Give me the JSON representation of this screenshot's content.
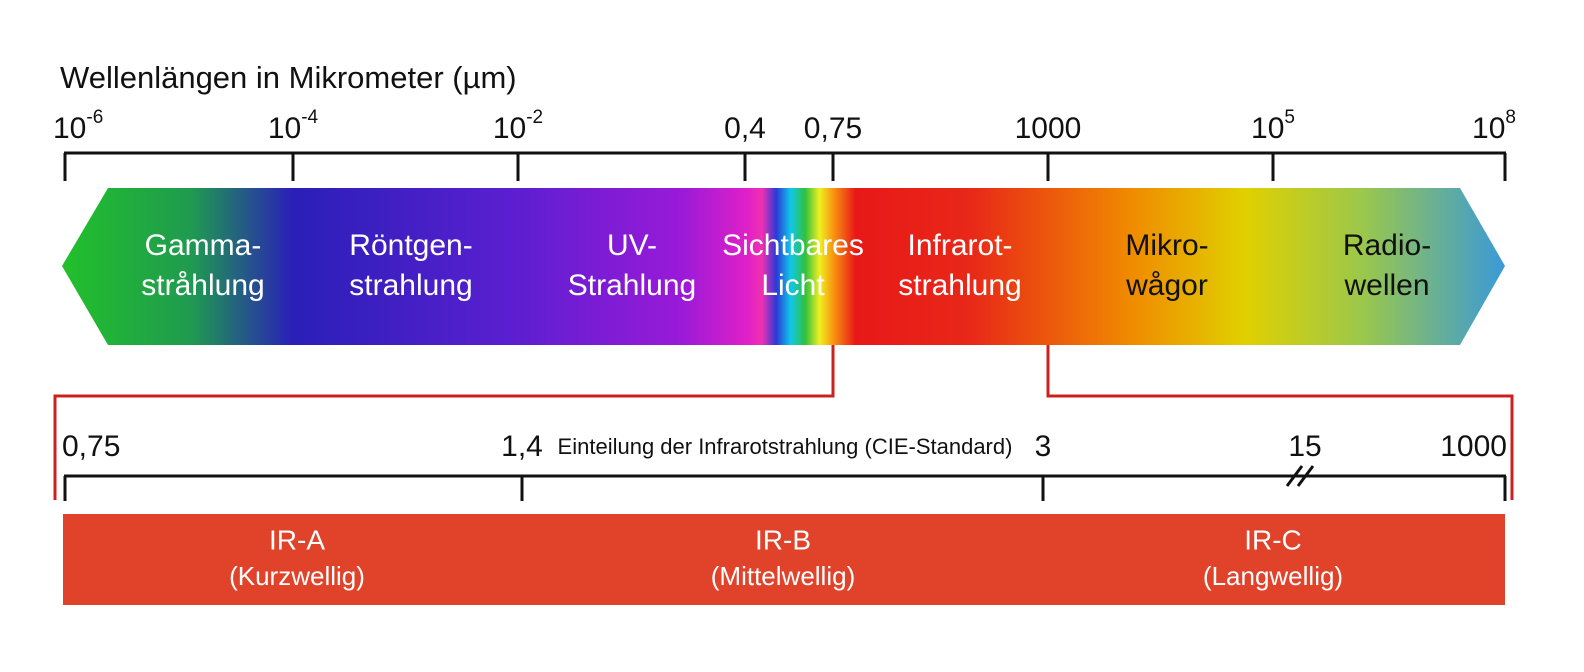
{
  "title": "Wellenlängen in Mikrometer (µm)",
  "scale": {
    "ticks": [
      {
        "base": "10",
        "exp": "-6"
      },
      {
        "base": "10",
        "exp": "-4"
      },
      {
        "base": "10",
        "exp": "-2"
      },
      {
        "base": "0,4"
      },
      {
        "base": "0,75"
      },
      {
        "base": "1000"
      },
      {
        "base": "10",
        "exp": "5"
      },
      {
        "base": "10",
        "exp": "8"
      }
    ]
  },
  "bands": [
    {
      "lines": [
        "Gamma-",
        "stråhlung"
      ]
    },
    {
      "lines": [
        "Röntgen-",
        "strahlung"
      ]
    },
    {
      "lines": [
        "UV-",
        "Strahlung"
      ]
    },
    {
      "lines": [
        "Sichtbares",
        "Licht"
      ]
    },
    {
      "lines": [
        "Infrarot-",
        "strahlung"
      ]
    },
    {
      "lines": [
        "Mikro-",
        "wågor"
      ]
    },
    {
      "lines": [
        "Radio-",
        "wellen"
      ]
    }
  ],
  "infrared": {
    "subtitle": "Einteilung der Infrarotstrahlung (CIE-Standard)",
    "ticks": [
      "0,75",
      "1,4",
      "3",
      "15",
      "1000"
    ],
    "bands": [
      {
        "name": "IR-A",
        "desc": "(Kurzwellig)"
      },
      {
        "name": "IR-B",
        "desc": "(Mittelwellig)"
      },
      {
        "name": "IR-C",
        "desc": "(Langwellig)"
      }
    ]
  }
}
